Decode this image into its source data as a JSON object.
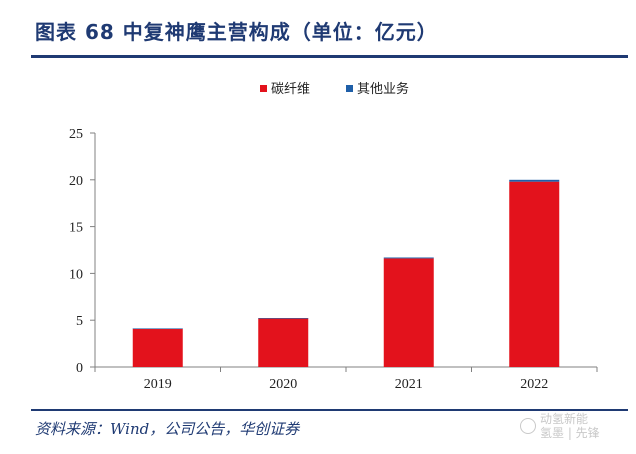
{
  "header": {
    "title": "图表 68  中复神鹰主营构成（单位：亿元）"
  },
  "footer": {
    "source": "资料来源：Wind，公司公告，华创证券",
    "watermark_line1": "动氢新能",
    "watermark_line2": "氢墨 | 先锋"
  },
  "colors": {
    "carbon_fiber": "#e3121c",
    "other": "#1f5fa8",
    "brand": "#1f3a73"
  },
  "chart_data": {
    "type": "bar",
    "stacked": true,
    "categories": [
      "2019",
      "2020",
      "2021",
      "2022"
    ],
    "series": [
      {
        "name": "碳纤维",
        "values": [
          4.1,
          5.2,
          11.6,
          19.8
        ]
      },
      {
        "name": "其他业务",
        "values": [
          0.02,
          0.03,
          0.1,
          0.2
        ]
      }
    ],
    "ylim": [
      0,
      25
    ],
    "yticks": [
      0,
      5,
      10,
      15,
      20,
      25
    ],
    "title": "",
    "xlabel": "",
    "ylabel": "",
    "legend_position": "top-center",
    "grid": false
  }
}
